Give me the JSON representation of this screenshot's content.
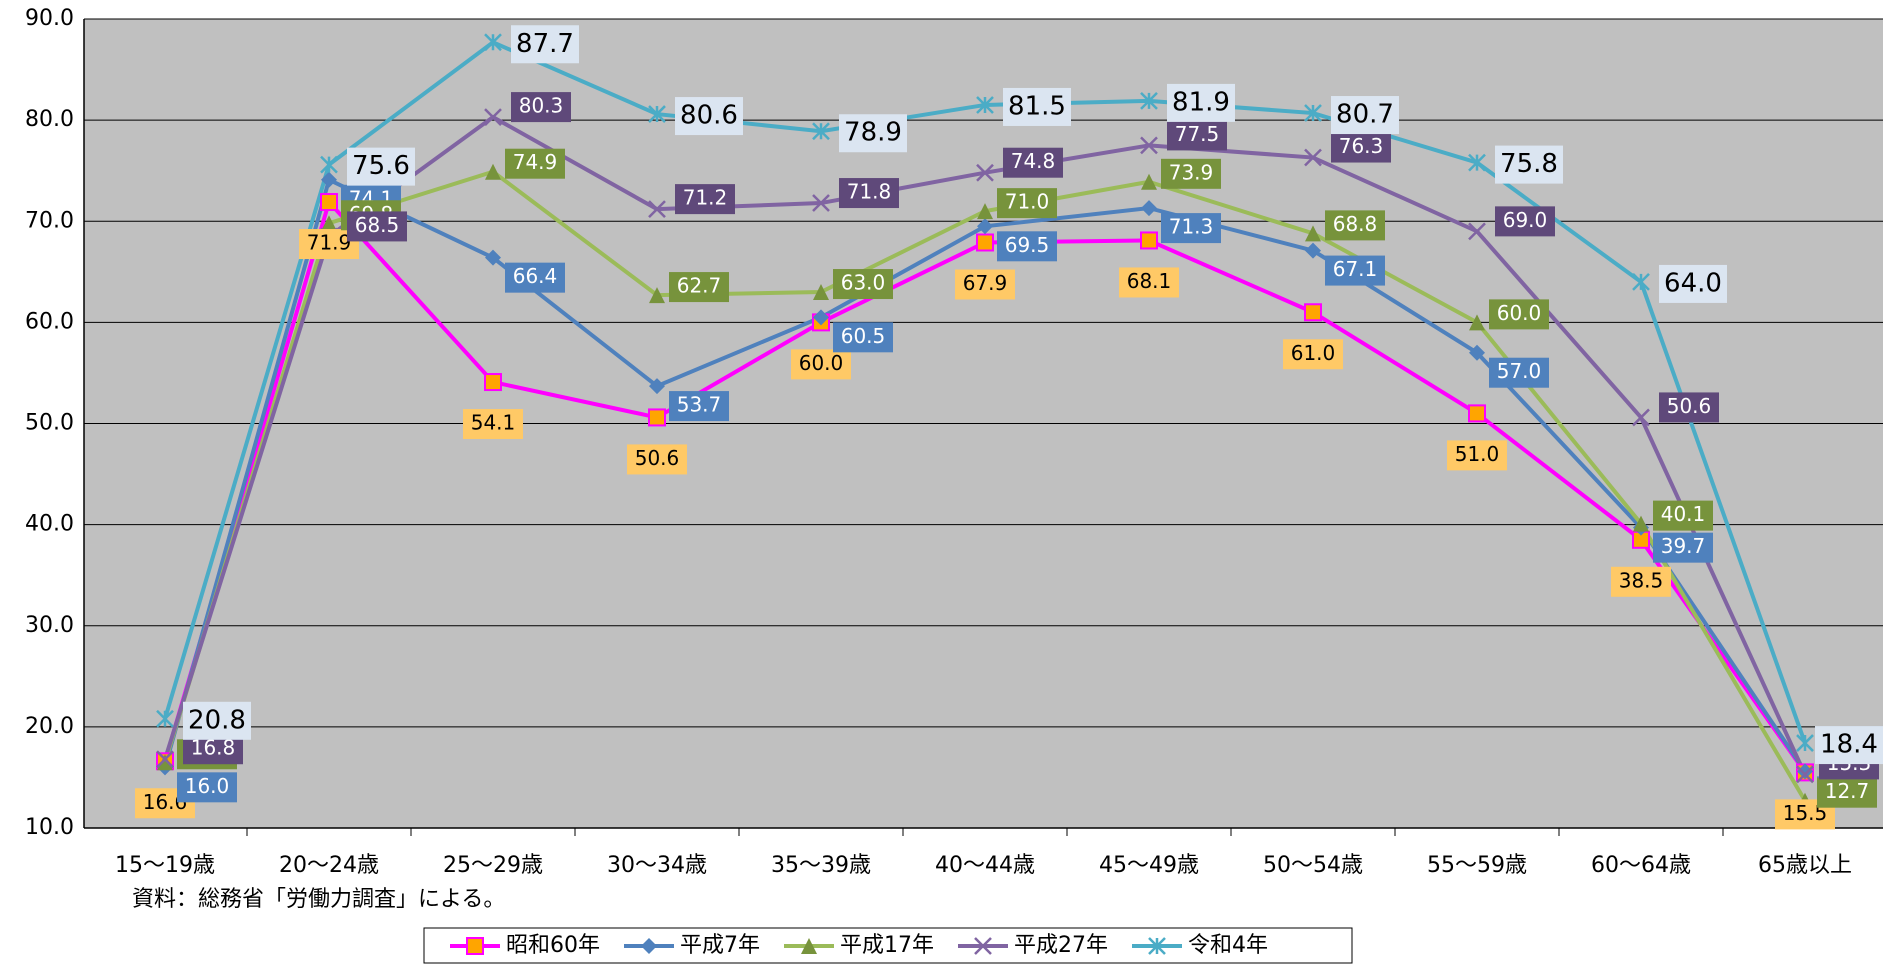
{
  "chart_data": {
    "type": "line",
    "categories": [
      "15〜19歳",
      "20〜24歳",
      "25〜29歳",
      "30〜34歳",
      "35〜39歳",
      "40〜44歳",
      "45〜49歳",
      "50〜54歳",
      "55〜59歳",
      "60〜64歳",
      "65歳以上"
    ],
    "series": [
      {
        "name": "昭和60年",
        "color": "#ff00ff",
        "marker": "square",
        "values": [
          16.6,
          71.9,
          54.1,
          50.6,
          60.0,
          67.9,
          68.1,
          61.0,
          51.0,
          38.5,
          15.5
        ],
        "value_labels": [
          "16.6",
          "71.9",
          "54.1",
          "50.6",
          "60.0",
          "67.9",
          "68.1",
          "61.0",
          "51.0",
          "38.5",
          "15.5"
        ]
      },
      {
        "name": "平成7年",
        "color": "#4f81bd",
        "marker": "diamond",
        "values": [
          16.0,
          74.1,
          66.4,
          53.7,
          60.5,
          69.5,
          71.3,
          67.1,
          57.0,
          39.7,
          15.6
        ],
        "value_labels": [
          "16.0",
          "74.1",
          "66.4",
          "53.7",
          "60.5",
          "69.5",
          "71.3",
          "67.1",
          "57.0",
          "39.7",
          "15.6"
        ]
      },
      {
        "name": "平成17年",
        "color": "#9bbb59",
        "marker": "triangle",
        "values": [
          16.5,
          69.8,
          74.9,
          62.7,
          63.0,
          71.0,
          73.9,
          68.8,
          60.0,
          40.1,
          12.7
        ],
        "value_labels": [
          "16.5",
          "69.8",
          "74.9",
          "62.7",
          "63.0",
          "71.0",
          "73.9",
          "68.8",
          "60.0",
          "40.1",
          "12.7"
        ]
      },
      {
        "name": "平成27年",
        "color": "#8064a2",
        "marker": "x",
        "values": [
          16.8,
          68.5,
          80.3,
          71.2,
          71.8,
          74.8,
          77.5,
          76.3,
          69.0,
          50.6,
          15.3
        ],
        "value_labels": [
          "16.8",
          "68.5",
          "80.3",
          "71.2",
          "71.8",
          "74.8",
          "77.5",
          "76.3",
          "69.0",
          "50.6",
          "15.3"
        ]
      },
      {
        "name": "令和4年",
        "color": "#4bacc6",
        "marker": "star",
        "values": [
          20.8,
          75.6,
          87.7,
          80.6,
          78.9,
          81.5,
          81.9,
          80.7,
          75.8,
          64.0,
          18.4
        ],
        "value_labels": [
          "20.8",
          "75.6",
          "87.7",
          "80.6",
          "78.9",
          "81.5",
          "81.9",
          "80.7",
          "75.8",
          "64.0",
          "18.4"
        ]
      }
    ],
    "ylim": [
      10,
      90
    ],
    "yticks": [
      {
        "value": 10,
        "label": "10.0"
      },
      {
        "value": 20,
        "label": "20.0"
      },
      {
        "value": 30,
        "label": "30.0"
      },
      {
        "value": 40,
        "label": "40.0"
      },
      {
        "value": 50,
        "label": "50.0"
      },
      {
        "value": 60,
        "label": "60.0"
      },
      {
        "value": 70,
        "label": "70.0"
      },
      {
        "value": 80,
        "label": "80.0"
      },
      {
        "value": 90,
        "label": "90.0"
      }
    ],
    "grid": true,
    "note": "資料：総務省「労働力調査」による。",
    "legend": "bottom"
  }
}
